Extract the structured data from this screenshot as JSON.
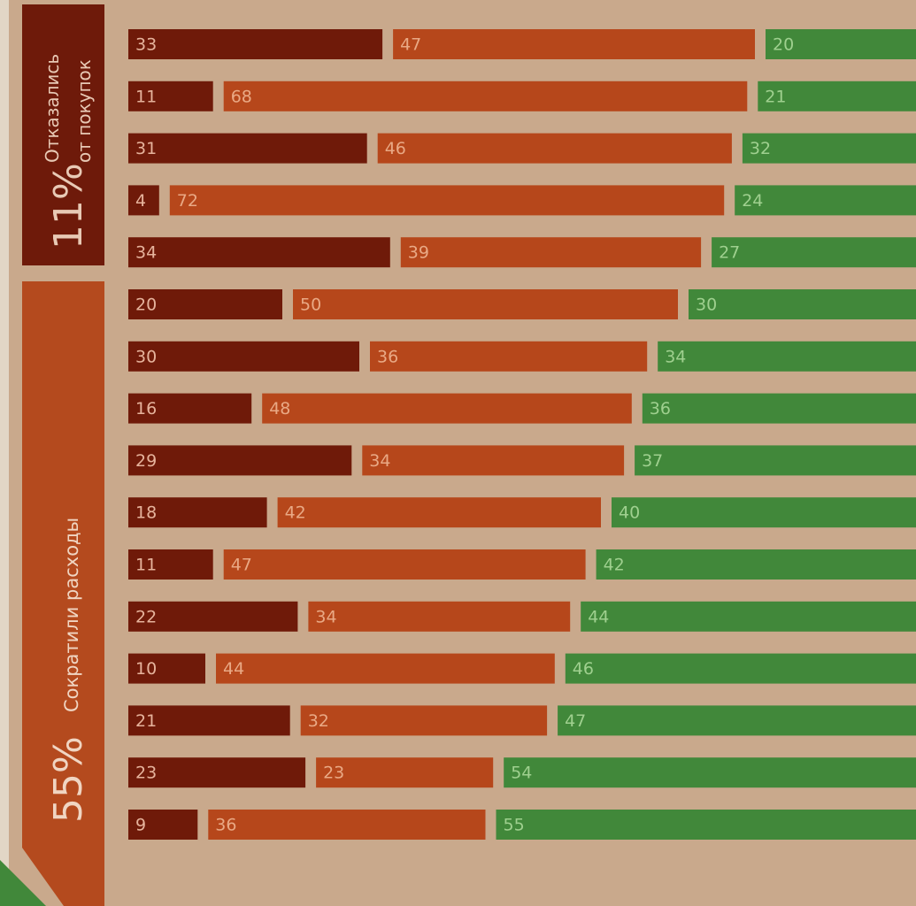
{
  "chart_data": {
    "type": "stacked_bar_horizontal",
    "annotations": [
      {
        "value": "11%",
        "lines": [
          "Отказались",
          "от покупок"
        ]
      },
      {
        "value": "55%",
        "lines": [
          "Сократили расходы"
        ]
      }
    ],
    "categories": [
      null,
      null,
      null,
      null,
      null,
      null,
      null,
      null,
      null,
      null,
      null,
      null,
      null,
      null,
      null,
      null
    ],
    "series": [
      {
        "color": "#6f1a09",
        "values": [
          33,
          11,
          31,
          4,
          34,
          20,
          30,
          16,
          29,
          18,
          11,
          22,
          10,
          21,
          23,
          9
        ]
      },
      {
        "color": "#b6471b",
        "values": [
          47,
          68,
          46,
          72,
          39,
          50,
          36,
          48,
          34,
          42,
          47,
          34,
          44,
          32,
          23,
          36
        ]
      },
      {
        "color": "#41883a",
        "values": [
          20,
          21,
          32,
          24,
          27,
          30,
          34,
          36,
          37,
          40,
          42,
          44,
          46,
          47,
          54,
          55
        ]
      }
    ]
  }
}
